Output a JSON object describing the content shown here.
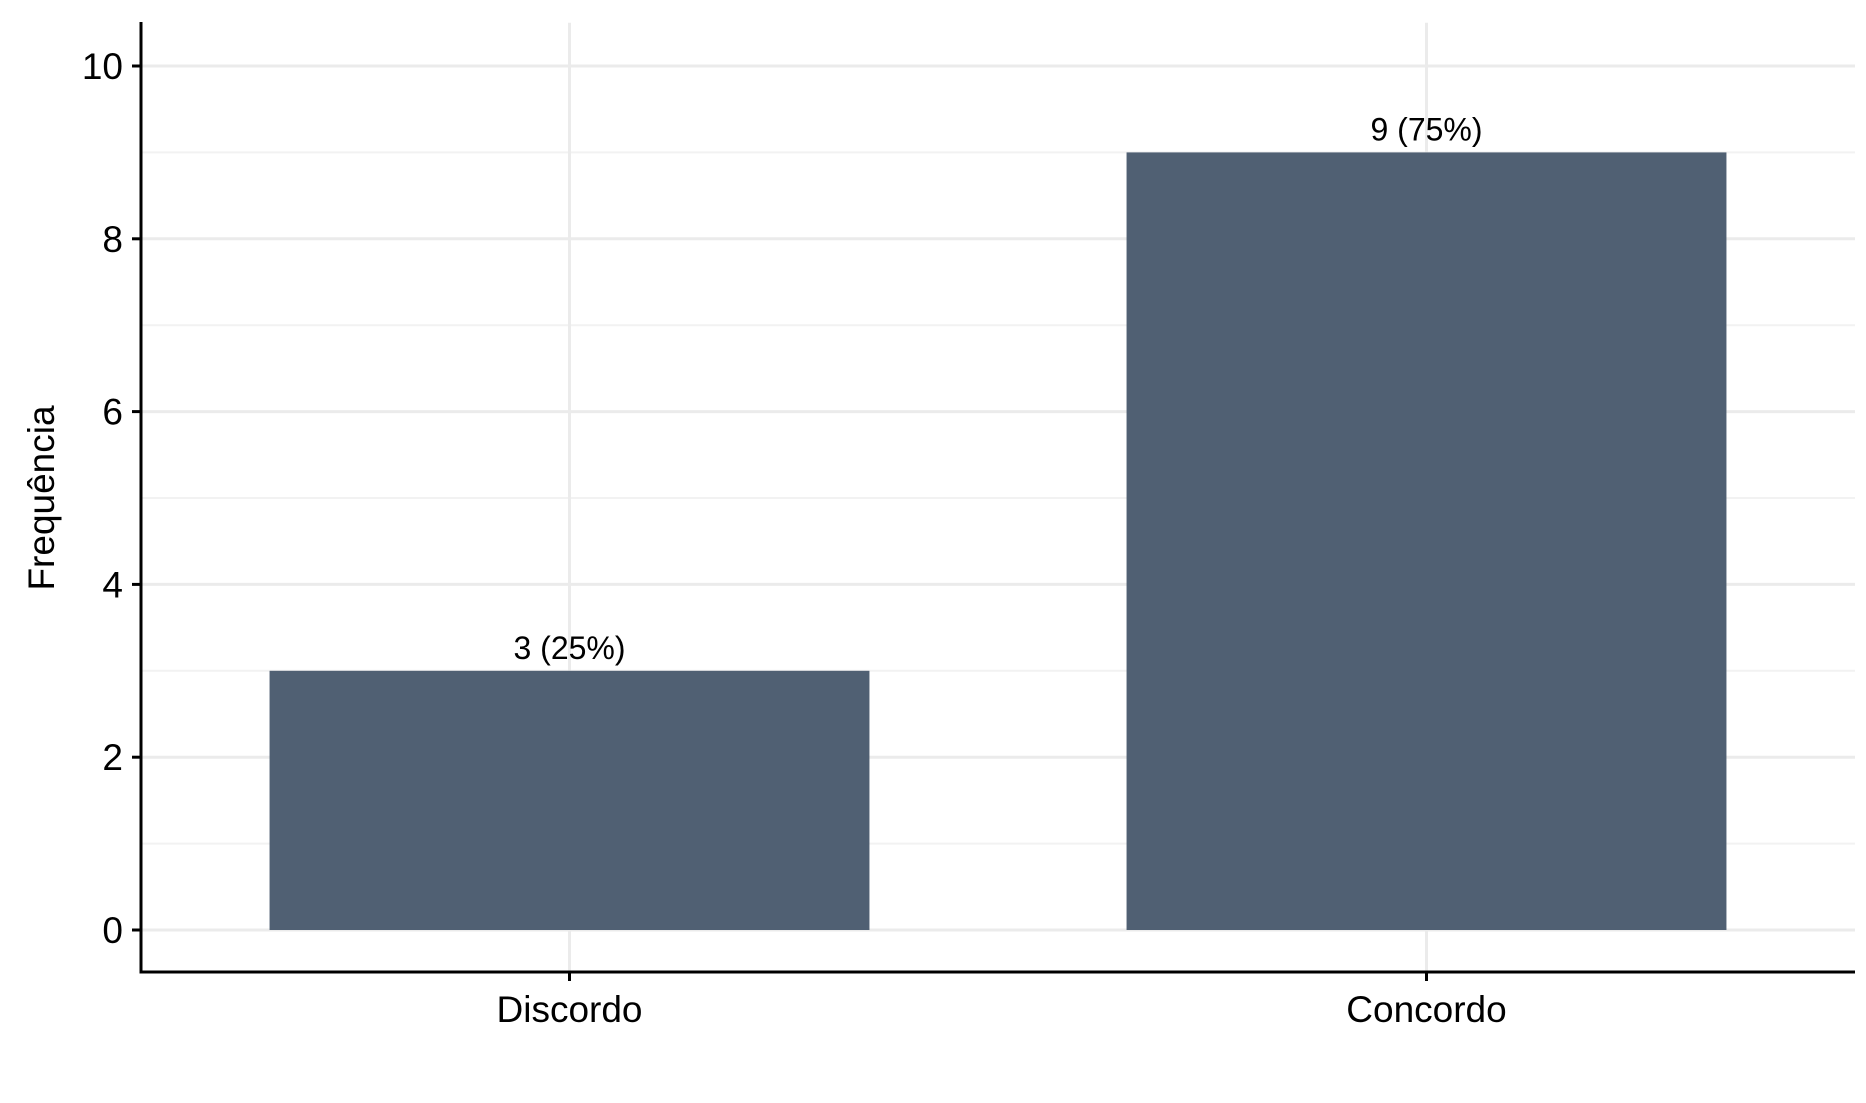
{
  "chart_data": {
    "type": "bar",
    "categories": [
      "Discordo",
      "Concordo"
    ],
    "values": [
      3,
      9
    ],
    "data_labels": [
      "3 (25%)",
      "9 (75%)"
    ],
    "title": "",
    "xlabel": "",
    "ylabel": "Frequência",
    "ylim": [
      0,
      10.5
    ],
    "yticks": [
      0,
      2,
      4,
      6,
      8,
      10
    ],
    "ytick_labels": [
      "0",
      "2",
      "4",
      "6",
      "8",
      "10"
    ],
    "grid": true,
    "legend": "none",
    "colors": {
      "bar": "#506073",
      "grid_major": "#ebebeb",
      "grid_minor": "#f2f2f2",
      "axis": "#000000"
    }
  }
}
